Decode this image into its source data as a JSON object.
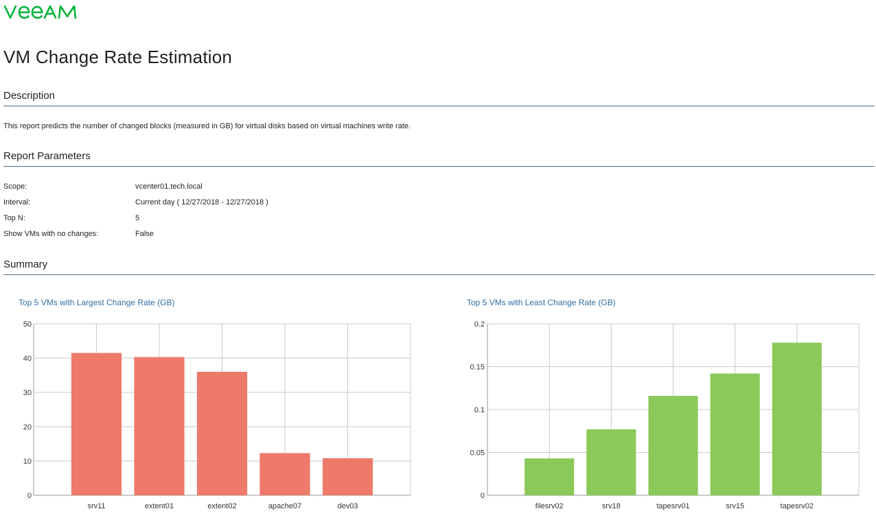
{
  "brand": {
    "logo_text": "VEEAM",
    "color": "#00b336"
  },
  "page": {
    "title": "VM Change Rate Estimation"
  },
  "sections": {
    "description_header": "Description",
    "description_text": "This report predicts the number of changed blocks (measured in GB) for virtual disks based on virtual machines write rate.",
    "parameters_header": "Report Parameters",
    "summary_header": "Summary"
  },
  "parameters": [
    {
      "label": "Scope:",
      "value": "vcenter01.tech.local"
    },
    {
      "label": "Interval:",
      "value": "Current day ( 12/27/2018 - 12/27/2018 )"
    },
    {
      "label": "Top N:",
      "value": "5"
    },
    {
      "label": "Show VMs with no changes:",
      "value": "False"
    }
  ],
  "colors": {
    "section_rule": "#4a6f8a",
    "chart_title": "#2e6da4",
    "largest_bars": "#ee7a6a",
    "least_bars": "#8bc95a",
    "grid": "#c8c8c8"
  },
  "chart_data": [
    {
      "type": "bar",
      "title": "Top 5 VMs with Largest Change Rate (GB)",
      "categories": [
        "srv11",
        "extent01",
        "extent02",
        "apache07",
        "dev03"
      ],
      "values": [
        41.5,
        40.3,
        36.0,
        12.3,
        10.8
      ],
      "ylim": [
        0,
        50
      ],
      "yticks": [
        "0",
        "10",
        "20",
        "30",
        "40",
        "50"
      ],
      "xlabel": "",
      "ylabel": "",
      "grid": true,
      "color": "#ee7a6a"
    },
    {
      "type": "bar",
      "title": "Top 5 VMs with Least Change Rate (GB)",
      "categories": [
        "filesrv02",
        "srv18",
        "tapesrv01",
        "srv15",
        "tapesrv02"
      ],
      "values": [
        0.043,
        0.077,
        0.116,
        0.142,
        0.178
      ],
      "ylim": [
        0,
        0.2
      ],
      "yticks": [
        "0",
        "0.05",
        "0.1",
        "0.15",
        "0.2"
      ],
      "xlabel": "",
      "ylabel": "",
      "grid": true,
      "color": "#8bc95a"
    }
  ]
}
